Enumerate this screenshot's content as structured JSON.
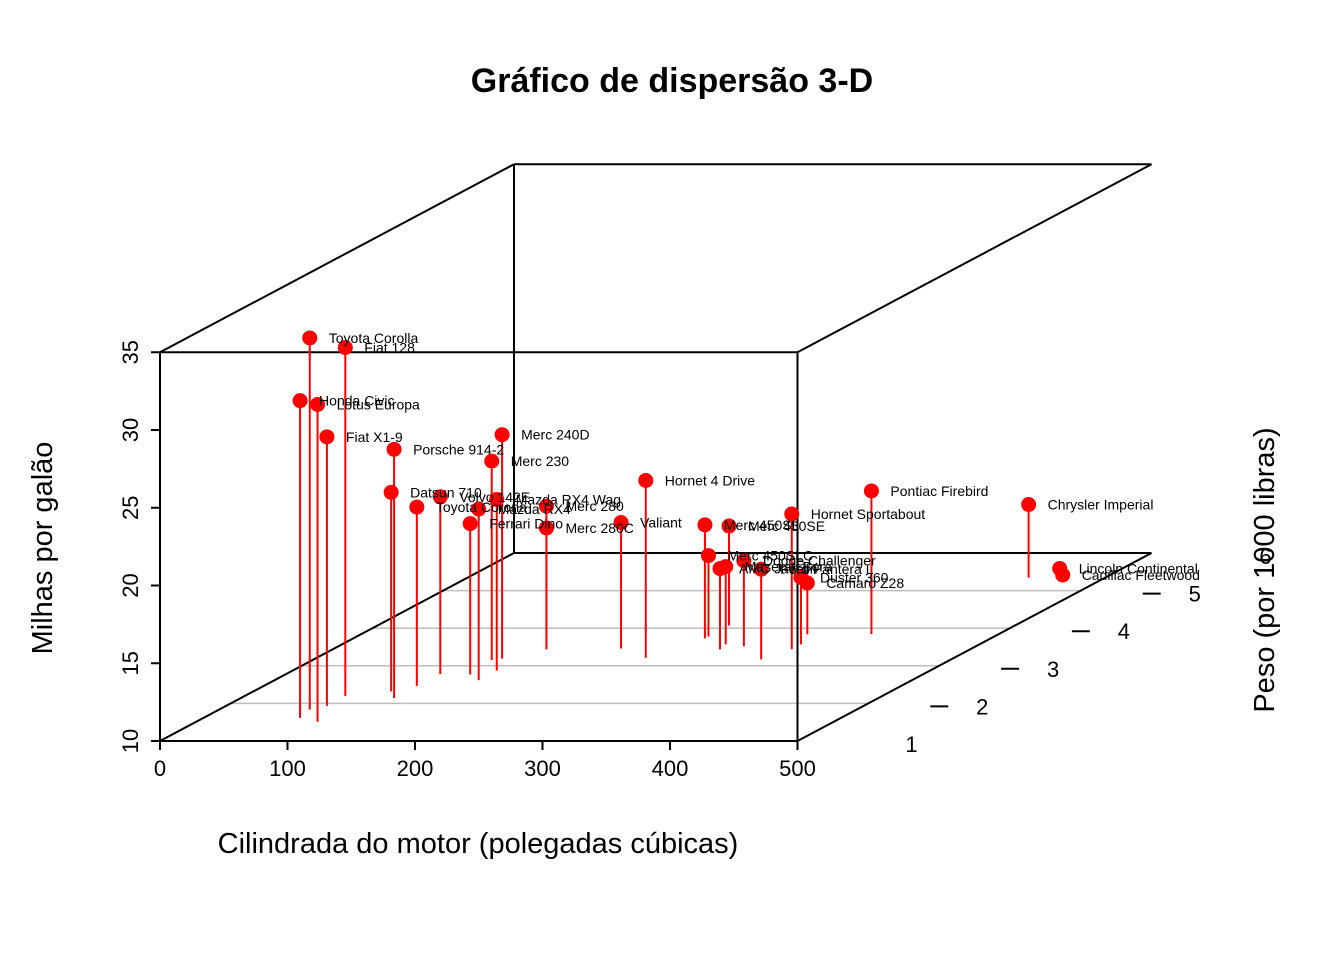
{
  "chart_data": {
    "type": "scatter",
    "title": "Gráfico de dispersão 3-D",
    "xlabel": "Cilindrada do motor (polegadas cúbicas)",
    "ylabel": "Peso (por 1000 libras)",
    "zlabel": "Milhas por galão",
    "xlim": [
      0,
      500
    ],
    "ylim": [
      1,
      6
    ],
    "zlim": [
      10,
      35
    ],
    "x_ticks": [
      "0",
      "100",
      "200",
      "300",
      "400",
      "500"
    ],
    "y_ticks": [
      "1",
      "2",
      "3",
      "4",
      "5",
      "6"
    ],
    "z_ticks": [
      "10",
      "15",
      "20",
      "25",
      "30",
      "35"
    ],
    "colors": {
      "points": "#ff0000",
      "stems": "#ff0000",
      "box": "#000000",
      "grid": "#bebebe"
    },
    "points": [
      {
        "name": "Mazda RX4",
        "disp": 160,
        "wt": 2.62,
        "mpg": 21.0
      },
      {
        "name": "Mazda RX4 Wag",
        "disp": 160,
        "wt": 2.875,
        "mpg": 21.0
      },
      {
        "name": "Datsun 710",
        "disp": 108,
        "wt": 2.32,
        "mpg": 22.8
      },
      {
        "name": "Hornet 4 Drive",
        "disp": 258,
        "wt": 3.215,
        "mpg": 21.4
      },
      {
        "name": "Hornet Sportabout",
        "disp": 360,
        "wt": 3.44,
        "mpg": 18.7
      },
      {
        "name": "Valiant",
        "disp": 225,
        "wt": 3.46,
        "mpg": 18.1
      },
      {
        "name": "Duster 360",
        "disp": 360,
        "wt": 3.57,
        "mpg": 14.3
      },
      {
        "name": "Merc 240D",
        "disp": 146.7,
        "wt": 3.19,
        "mpg": 24.4
      },
      {
        "name": "Merc 230",
        "disp": 140.8,
        "wt": 3.15,
        "mpg": 22.8
      },
      {
        "name": "Merc 280",
        "disp": 167.6,
        "wt": 3.44,
        "mpg": 19.2
      },
      {
        "name": "Merc 280C",
        "disp": 167.6,
        "wt": 3.44,
        "mpg": 17.8
      },
      {
        "name": "Merc 450SE",
        "disp": 275.8,
        "wt": 4.07,
        "mpg": 16.4
      },
      {
        "name": "Merc 450SL",
        "disp": 275.8,
        "wt": 3.73,
        "mpg": 17.3
      },
      {
        "name": "Merc 450SLC",
        "disp": 275.8,
        "wt": 3.78,
        "mpg": 15.2
      },
      {
        "name": "Cadillac Fleetwood",
        "disp": 472,
        "wt": 5.25,
        "mpg": 10.4
      },
      {
        "name": "Lincoln Continental",
        "disp": 460,
        "wt": 5.424,
        "mpg": 10.4
      },
      {
        "name": "Chrysler Imperial",
        "disp": 440,
        "wt": 5.345,
        "mpg": 14.7
      },
      {
        "name": "Fiat 128",
        "disp": 78.7,
        "wt": 2.2,
        "mpg": 32.4
      },
      {
        "name": "Honda Civic",
        "disp": 75.7,
        "wt": 1.615,
        "mpg": 30.4
      },
      {
        "name": "Toyota Corolla",
        "disp": 71.1,
        "wt": 1.835,
        "mpg": 33.9
      },
      {
        "name": "Toyota Corona",
        "disp": 120.1,
        "wt": 2.465,
        "mpg": 21.5
      },
      {
        "name": "Dodge Challenger",
        "disp": 318,
        "wt": 3.52,
        "mpg": 15.5
      },
      {
        "name": "AMC Javelin",
        "disp": 304,
        "wt": 3.435,
        "mpg": 15.2
      },
      {
        "name": "Camaro Z28",
        "disp": 350,
        "wt": 3.84,
        "mpg": 13.3
      },
      {
        "name": "Pontiac Firebird",
        "disp": 400,
        "wt": 3.845,
        "mpg": 19.2
      },
      {
        "name": "Fiat X1-9",
        "disp": 79,
        "wt": 1.935,
        "mpg": 27.3
      },
      {
        "name": "Porsche 914-2",
        "disp": 120.3,
        "wt": 2.14,
        "mpg": 26.0
      },
      {
        "name": "Lotus Europa",
        "disp": 95.1,
        "wt": 1.513,
        "mpg": 30.4
      },
      {
        "name": "Ford Pantera L",
        "disp": 351,
        "wt": 3.17,
        "mpg": 15.8
      },
      {
        "name": "Ferrari Dino",
        "disp": 145,
        "wt": 2.77,
        "mpg": 19.7
      },
      {
        "name": "Maserati Bora",
        "disp": 301,
        "wt": 3.57,
        "mpg": 15.0
      },
      {
        "name": "Volvo 142E",
        "disp": 121,
        "wt": 2.78,
        "mpg": 21.4
      }
    ]
  }
}
